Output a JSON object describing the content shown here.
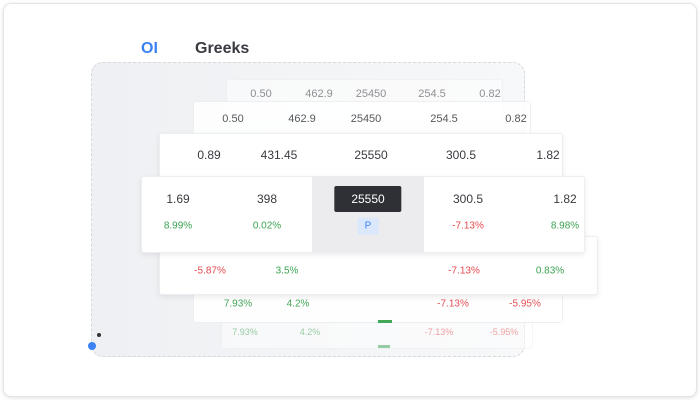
{
  "tabs": [
    "OI",
    "Greeks"
  ],
  "layers": [
    {
      "rows": [
        [
          "0.50",
          "462.9",
          "25450",
          "254.5",
          "0.82"
        ]
      ]
    },
    {
      "rows": [
        [
          "0.50",
          "462.9",
          "25450",
          "254.5",
          "0.82"
        ]
      ]
    },
    {
      "rows": [
        [
          "0.89",
          "431.45",
          "25550",
          "300.5",
          "1.82"
        ]
      ]
    },
    {
      "rows": [
        [
          "1.69",
          "398",
          "25550",
          "300.5",
          "1.82"
        ],
        [
          "8.99%",
          "0.02%",
          "P",
          "-7.13%",
          "8.98%"
        ]
      ]
    },
    {
      "rows": [
        [
          "-5.87%",
          "3.5%",
          "-7.13%",
          "0.83%"
        ]
      ]
    },
    {
      "rows": [
        [
          "7.93%",
          "4.2%",
          "-7.13%",
          "-5.95%"
        ]
      ]
    },
    {
      "rows": [
        [
          "7.93%",
          "4.2%",
          "-7.13%",
          "-5.95%"
        ]
      ]
    }
  ]
}
